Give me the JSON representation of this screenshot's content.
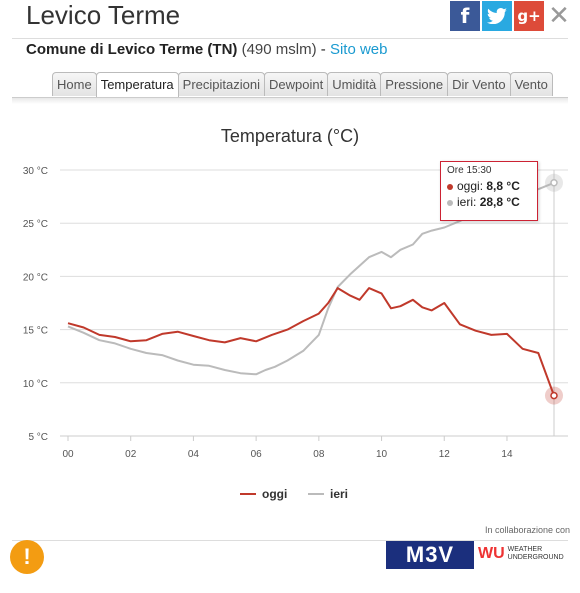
{
  "header": {
    "title": "Levico Terme",
    "social": {
      "facebook": "f",
      "twitter": "🐦",
      "gplus": "g+",
      "close": "✕"
    }
  },
  "subtitle": {
    "name": "Comune di Levico Terme (TN)",
    "altitude": "(490 mslm)",
    "separator": " - ",
    "link": "Sito web"
  },
  "tabs": [
    "Home",
    "Temperatura",
    "Precipitazioni",
    "Dewpoint",
    "Umidità",
    "Pressione",
    "Dir Vento",
    "Vento"
  ],
  "active_tab": "Temperatura",
  "tooltip": {
    "time": "Ore 15:30",
    "oggi_label": "oggi:",
    "oggi_value": "8,8 °C",
    "ieri_label": "ieri:",
    "ieri_value": "28,8 °C"
  },
  "footer": {
    "collab": "In collaborazione con",
    "mbv": "M3V",
    "wu": "WU",
    "wu_text1": "WEATHER",
    "wu_text2": "UNDERGROUND",
    "warning": "!"
  },
  "colors": {
    "oggi": "#c0392b",
    "ieri": "#bbbbbb",
    "accent": "#1a9ad0"
  },
  "chart_data": {
    "type": "line",
    "title": "Temperatura (°C)",
    "ylim": [
      5,
      30
    ],
    "yticks": [
      "5 °C",
      "10 °C",
      "15 °C",
      "20 °C",
      "25 °C",
      "30 °C"
    ],
    "ytick_values": [
      5,
      10,
      15,
      20,
      25,
      30
    ],
    "xlim": [
      0,
      15.5
    ],
    "xticks": [
      "00",
      "02",
      "04",
      "06",
      "08",
      "10",
      "12",
      "14"
    ],
    "xtick_values": [
      0,
      2,
      4,
      6,
      8,
      10,
      12,
      14
    ],
    "legend": [
      "oggi",
      "ieri"
    ],
    "legend_position": "bottom",
    "series": [
      {
        "name": "oggi",
        "color": "#c0392b",
        "x": [
          0,
          0.5,
          1,
          1.5,
          2,
          2.5,
          3,
          3.5,
          4,
          4.5,
          5,
          5.5,
          6,
          6.5,
          7,
          7.5,
          8,
          8.3,
          8.6,
          9,
          9.3,
          9.6,
          10,
          10.3,
          10.6,
          11,
          11.3,
          11.6,
          12,
          12.5,
          13,
          13.5,
          14,
          14.5,
          15,
          15.5
        ],
        "values": [
          15.6,
          15.2,
          14.5,
          14.3,
          13.9,
          14.0,
          14.6,
          14.8,
          14.4,
          14.0,
          13.8,
          14.2,
          13.9,
          14.5,
          15.0,
          15.8,
          16.5,
          17.5,
          18.9,
          18.2,
          17.8,
          18.9,
          18.4,
          17.0,
          17.2,
          17.8,
          17.1,
          16.8,
          17.5,
          15.5,
          14.9,
          14.5,
          14.6,
          13.2,
          12.8,
          8.8
        ]
      },
      {
        "name": "ieri",
        "color": "#bbbbbb",
        "x": [
          0,
          0.5,
          1,
          1.5,
          2,
          2.5,
          3,
          3.5,
          4,
          4.5,
          5,
          5.5,
          6,
          6.3,
          6.6,
          7,
          7.5,
          8,
          8.3,
          8.6,
          9,
          9.3,
          9.6,
          10,
          10.3,
          10.6,
          11,
          11.3,
          11.6,
          12,
          12.5,
          13,
          13.5,
          14,
          14.5,
          15,
          15.5
        ],
        "values": [
          15.3,
          14.7,
          14.0,
          13.7,
          13.2,
          12.8,
          12.6,
          12.1,
          11.7,
          11.6,
          11.2,
          10.9,
          10.8,
          11.2,
          11.5,
          12.1,
          13.0,
          14.5,
          17.0,
          19.0,
          20.2,
          21.0,
          21.8,
          22.3,
          21.8,
          22.5,
          23.0,
          24.0,
          24.3,
          24.6,
          25.2,
          26.0,
          26.8,
          27.2,
          27.8,
          28.2,
          28.8
        ]
      }
    ]
  }
}
